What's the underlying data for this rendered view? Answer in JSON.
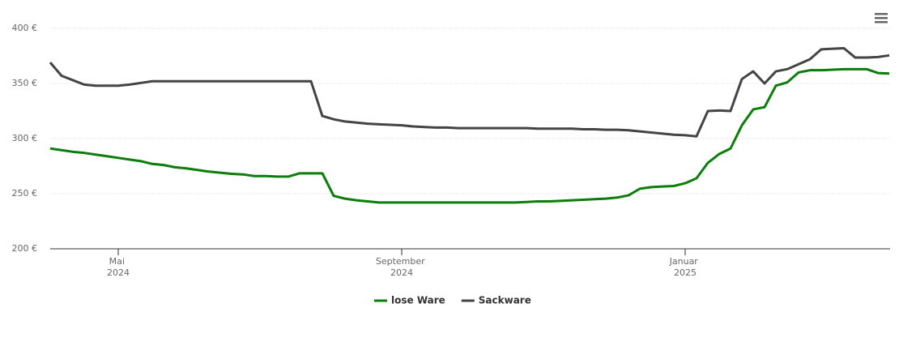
{
  "chart_data": {
    "type": "line",
    "categories": [
      null,
      null,
      null,
      null,
      null,
      null,
      "Mai 2024",
      null,
      null,
      null,
      null,
      null,
      null,
      null,
      null,
      null,
      null,
      null,
      null,
      null,
      null,
      null,
      null,
      null,
      null,
      null,
      null,
      null,
      null,
      null,
      null,
      "September 2024",
      null,
      null,
      null,
      null,
      null,
      null,
      null,
      null,
      null,
      null,
      null,
      null,
      null,
      null,
      null,
      null,
      null,
      null,
      null,
      null,
      null,
      null,
      null,
      null,
      "Januar 2025",
      null,
      null,
      null,
      null,
      null,
      null,
      null,
      null,
      null,
      null,
      null,
      null,
      null,
      null,
      null,
      null,
      null,
      null
    ],
    "series": [
      {
        "name": "lose Ware",
        "color": "#0a7d0a",
        "values": [
          291,
          289.5,
          288,
          287,
          285.5,
          284,
          282.5,
          281,
          279.5,
          277,
          276,
          274,
          273,
          271.5,
          270,
          269,
          268,
          267.5,
          266,
          266,
          265.5,
          265.5,
          268.5,
          268.5,
          268.5,
          248,
          245.5,
          244,
          243,
          242,
          242,
          242,
          242,
          242,
          242,
          242,
          242,
          242,
          242,
          242,
          242,
          242,
          242.5,
          243,
          243,
          243.5,
          244,
          244.5,
          245,
          245.5,
          246.5,
          248.5,
          254.5,
          256,
          256.5,
          257,
          259.5,
          264,
          278,
          286,
          291,
          312,
          326.5,
          328.5,
          348,
          351,
          360,
          362,
          362,
          362.5,
          363,
          363,
          363,
          359.5,
          359
        ]
      },
      {
        "name": "Sackware",
        "color": "#444444",
        "values": [
          369,
          357,
          353,
          349,
          348,
          348,
          348,
          349,
          350.5,
          352,
          352,
          352,
          352,
          352,
          352,
          352,
          352,
          352,
          352,
          352,
          352,
          352,
          352,
          352,
          320.5,
          317.5,
          315.5,
          314.5,
          313.5,
          313,
          312.5,
          312,
          311,
          310.5,
          310,
          310,
          309.5,
          309.5,
          309.5,
          309.5,
          309.5,
          309.5,
          309.5,
          309,
          309,
          309,
          309,
          308.5,
          308.5,
          308,
          308,
          307.5,
          306.5,
          305.5,
          304.5,
          303.5,
          303,
          302,
          325,
          325.5,
          325,
          354,
          361,
          350,
          361,
          363,
          367.5,
          372,
          381,
          381.5,
          382,
          373.5,
          373.5,
          374,
          375.5
        ]
      }
    ],
    "ylim": [
      200,
      400
    ],
    "yticks": [
      {
        "value": 200,
        "label": "200 €"
      },
      {
        "value": 250,
        "label": "250 €"
      },
      {
        "value": 300,
        "label": "300 €"
      },
      {
        "value": 350,
        "label": "350 €"
      },
      {
        "value": 400,
        "label": "400 €"
      }
    ],
    "grid": true,
    "legend": "bottom"
  }
}
